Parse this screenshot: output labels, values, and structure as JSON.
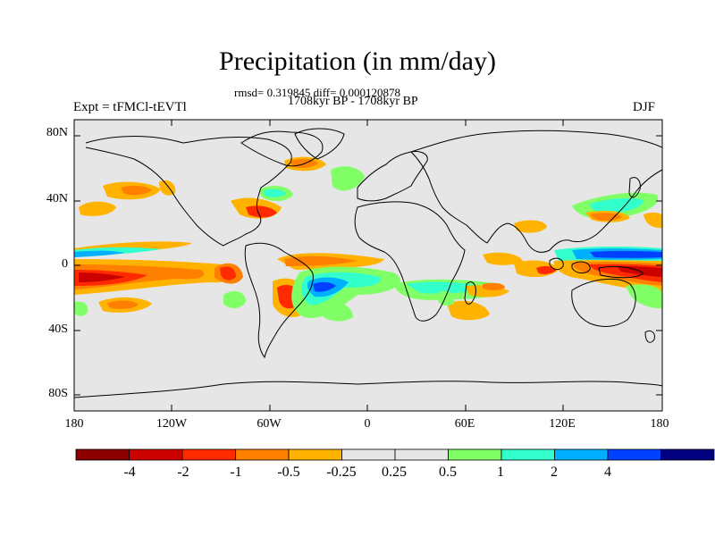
{
  "title": "Precipitation (in mm/day)",
  "stats_text": "rmsd= 0.319845 diff= 0.000120878",
  "period_text": "1708kyr BP - 1708kyr BP",
  "experiment_label": "Expt = tFMCl-tEVTl",
  "season_label": "DJF",
  "lat_axis": [
    "80N",
    "40N",
    "0",
    "40S",
    "80S"
  ],
  "lon_axis": [
    "180",
    "120W",
    "60W",
    "0",
    "60E",
    "120E",
    "180"
  ],
  "colorbar": {
    "colors": [
      "#8b0000",
      "#cd0000",
      "#ff2a00",
      "#ff7f00",
      "#ffb300",
      "#e6e6e6",
      "#e6e6e6",
      "#80ff66",
      "#33ffcc",
      "#00b0ff",
      "#0040ff",
      "#000080"
    ],
    "labels": [
      "-4",
      "-2",
      "-1",
      "-0.5",
      "-0.25",
      "0.25",
      "0.5",
      "1",
      "2",
      "4"
    ]
  },
  "colors": {
    "background": "#e6e6e6",
    "coast": "#000000"
  }
}
